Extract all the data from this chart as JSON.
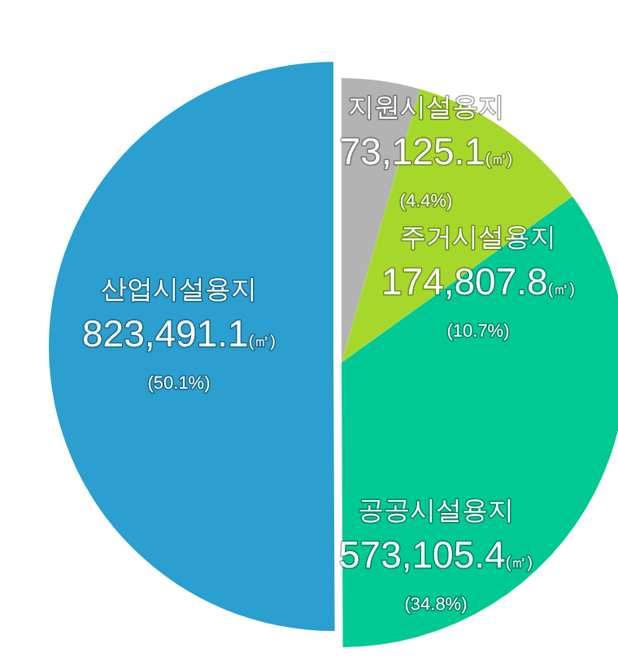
{
  "chart_data": {
    "type": "pie",
    "categories": [
      "지원시설용지",
      "주거시설용지",
      "공공시설용지",
      "산업시설용지"
    ],
    "values": [
      73125.1,
      174807.8,
      573105.4,
      823491.1
    ],
    "value_labels": [
      "73,125.1(㎡)",
      "174,807.8(㎡)",
      "573,105.4(㎡)",
      "823,491.1(㎡)"
    ],
    "annotations": [
      "(4.4%)",
      "(10.7%)",
      "(34.8%)",
      "(50.1%)"
    ],
    "colors": [
      "#b3b3b3",
      "#a6d82b",
      "#00c994",
      "#2a9fd0"
    ]
  }
}
